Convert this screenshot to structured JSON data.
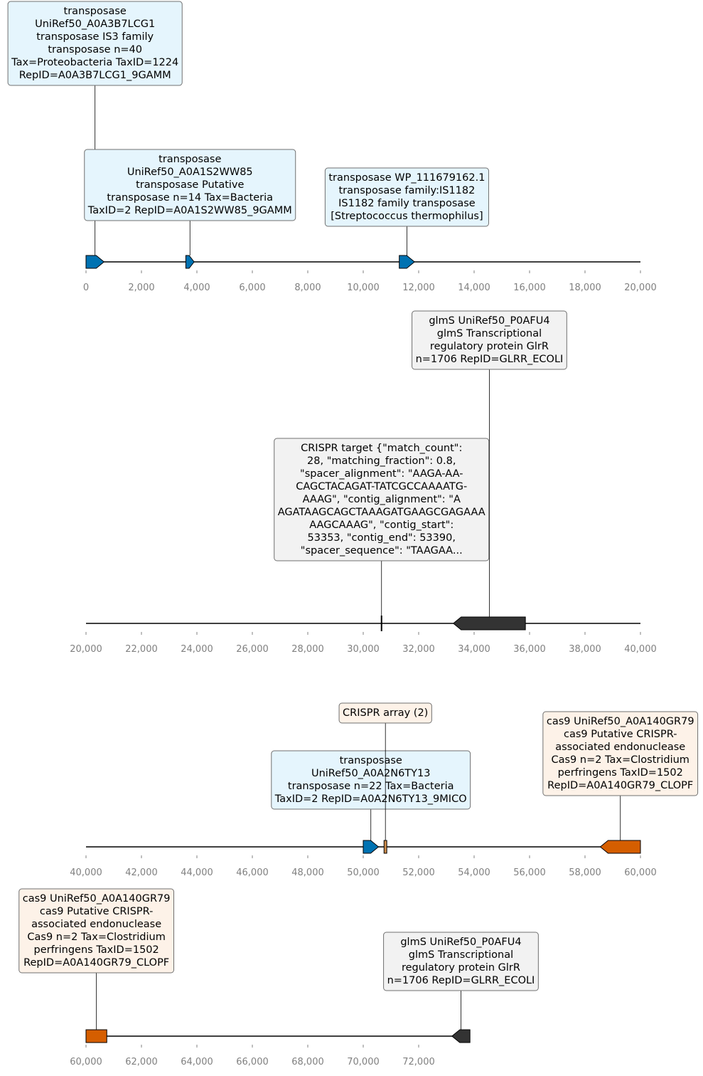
{
  "colors": {
    "transposase": "#0072b2",
    "cas9": "#d55e00",
    "crispr_array": "#cc8b4a",
    "other": "#333333",
    "box_transposase": "#e5f5fd",
    "box_crispr": "#fdf2e8",
    "box_other": "#f2f2f2",
    "box_border": "#707070",
    "axis_text": "#808080"
  },
  "tracks": [
    {
      "id": "track-1",
      "range": [
        0,
        20000
      ],
      "ticks": [
        0,
        2000,
        4000,
        6000,
        8000,
        10000,
        12000,
        14000,
        16000,
        18000,
        20000
      ],
      "tick_labels": [
        "0",
        "2,000",
        "4,000",
        "6,000",
        "8,000",
        "10,000",
        "12,000",
        "14,000",
        "16,000",
        "18,000",
        "20,000"
      ],
      "features": [
        {
          "kind": "transposase",
          "start": 0,
          "end": 650,
          "strand": 1,
          "label": [
            "transposase",
            "UniRef50_A0A3B7LCG1",
            "transposase IS3 family",
            "transposase n=40",
            "Tax=Proteobacteria TaxID=1224",
            "RepID=A0A3B7LCG1_9GAMM"
          ]
        },
        {
          "kind": "transposase",
          "start": 3600,
          "end": 3900,
          "strand": 1,
          "label": [
            "transposase",
            "UniRef50_A0A1S2WW85",
            "transposase Putative",
            "transposase n=14 Tax=Bacteria",
            "TaxID=2 RepID=A0A1S2WW85_9GAMM"
          ]
        },
        {
          "kind": "transposase",
          "start": 11300,
          "end": 11850,
          "strand": 1,
          "label": [
            "transposase WP_111679162.1",
            "transposase family:IS1182",
            "IS1182 family transposase",
            "[Streptococcus thermophilus]"
          ]
        }
      ]
    },
    {
      "id": "track-2",
      "range": [
        20000,
        40000
      ],
      "ticks": [
        20000,
        22000,
        24000,
        26000,
        28000,
        30000,
        32000,
        34000,
        36000,
        38000,
        40000
      ],
      "tick_labels": [
        "20,000",
        "22,000",
        "24,000",
        "26,000",
        "28,000",
        "30,000",
        "32,000",
        "34,000",
        "36,000",
        "38,000",
        "40,000"
      ],
      "features": [
        {
          "kind": "crispr_target",
          "start": 30640,
          "end": 30680,
          "strand": 0,
          "label": [
            "CRISPR target {\"match_count\":",
            "28, \"matching_fraction\": 0.8,",
            "\"spacer_alignment\": \"AAGA-AA-",
            "CAGCTACAGAT-TATCGCCAAAATG-",
            "AAAG\", \"contig_alignment\": \"A",
            "AGATAAGCAGCTAAAGATGAAGCGAGAAA",
            "AAGCAAAG\", \"contig_start\":",
            "53353, \"contig_end\": 53390,",
            "\"spacer_sequence\": \"TAAGAA..."
          ]
        },
        {
          "kind": "other",
          "start": 33250,
          "end": 35850,
          "strand": -1,
          "label": [
            "glmS UniRef50_P0AFU4",
            "glmS Transcriptional",
            "regulatory protein GlrR",
            "n=1706 RepID=GLRR_ECOLI"
          ]
        }
      ]
    },
    {
      "id": "track-3",
      "range": [
        40000,
        60000
      ],
      "ticks": [
        40000,
        42000,
        44000,
        46000,
        48000,
        50000,
        52000,
        54000,
        56000,
        58000,
        60000
      ],
      "tick_labels": [
        "40,000",
        "42,000",
        "44,000",
        "46,000",
        "48,000",
        "50,000",
        "52,000",
        "54,000",
        "56,000",
        "58,000",
        "60,000"
      ],
      "features": [
        {
          "kind": "transposase",
          "start": 50000,
          "end": 50550,
          "strand": 1,
          "label": [
            "transposase",
            "UniRef50_A0A2N6TY13",
            "transposase n=22 Tax=Bacteria",
            "TaxID=2 RepID=A0A2N6TY13_9MICO"
          ]
        },
        {
          "kind": "crispr_array",
          "start": 50750,
          "end": 50850,
          "strand": 0,
          "label": [
            "CRISPR array (2)"
          ]
        },
        {
          "kind": "cas9",
          "start": 58550,
          "end": 60000,
          "strand": -1,
          "label": [
            "cas9 UniRef50_A0A140GR79",
            "cas9 Putative CRISPR-",
            "associated endonuclease",
            "Cas9 n=2 Tax=Clostridium",
            "perfringens TaxID=1502",
            "RepID=A0A140GR79_CLOPF"
          ]
        }
      ]
    },
    {
      "id": "track-4",
      "range": [
        60000,
        73850
      ],
      "ticks": [
        60000,
        62000,
        64000,
        66000,
        68000,
        70000,
        72000
      ],
      "tick_labels": [
        "60,000",
        "62,000",
        "64,000",
        "66,000",
        "68,000",
        "70,000",
        "72,000"
      ],
      "features": [
        {
          "kind": "cas9",
          "start": 60000,
          "end": 60750,
          "strand": 0,
          "label": [
            "cas9 UniRef50_A0A140GR79",
            "cas9 Putative CRISPR-",
            "associated endonuclease",
            "Cas9 n=2 Tax=Clostridium",
            "perfringens TaxID=1502",
            "RepID=A0A140GR79_CLOPF"
          ]
        },
        {
          "kind": "other",
          "start": 73200,
          "end": 73850,
          "strand": -1,
          "label": [
            "glmS UniRef50_P0AFU4",
            "glmS Transcriptional",
            "regulatory protein GlrR",
            "n=1706 RepID=GLRR_ECOLI"
          ]
        }
      ]
    }
  ]
}
